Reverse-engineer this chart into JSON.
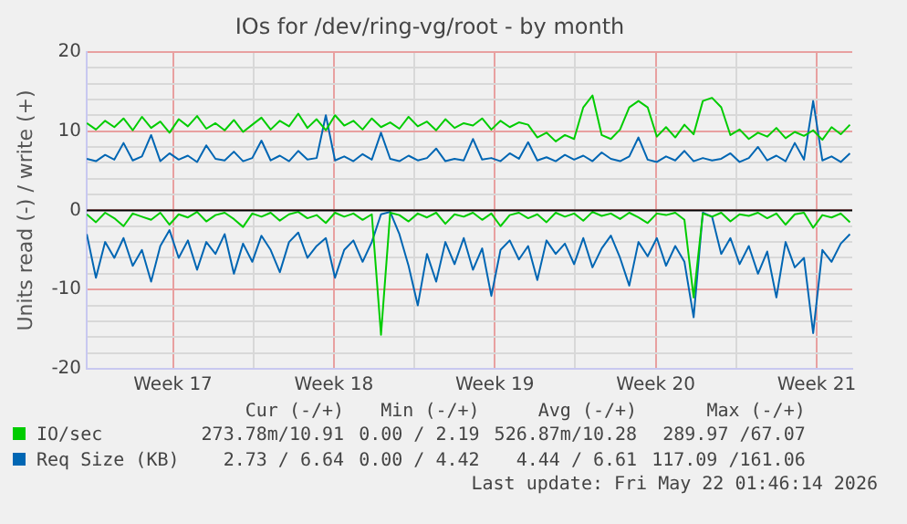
{
  "chart_data": {
    "type": "line",
    "title": "IOs for /dev/ring-vg/root - by month",
    "ylabel": "Units read (-) / write (+)",
    "x": [
      "2026-04-18T18:00",
      "2026-04-19T03:36",
      "2026-04-19T13:12",
      "2026-04-19T22:48",
      "2026-04-20T08:24",
      "2026-04-20T18:00",
      "2026-04-21T03:36",
      "2026-04-21T13:12",
      "2026-04-21T22:48",
      "2026-04-22T08:24",
      "2026-04-22T18:00",
      "2026-04-23T03:36",
      "2026-04-23T13:12",
      "2026-04-23T22:48",
      "2026-04-24T08:24",
      "2026-04-24T18:00",
      "2026-04-25T03:36",
      "2026-04-25T13:12",
      "2026-04-25T22:48",
      "2026-04-26T08:24",
      "2026-04-26T18:00",
      "2026-04-27T03:36",
      "2026-04-27T13:12",
      "2026-04-27T22:48",
      "2026-04-28T08:24",
      "2026-04-28T18:00",
      "2026-04-29T03:36",
      "2026-04-29T13:12",
      "2026-04-29T22:48",
      "2026-04-30T08:24",
      "2026-04-30T18:00",
      "2026-05-01T03:36",
      "2026-05-01T13:12",
      "2026-05-01T22:48",
      "2026-05-02T08:24",
      "2026-05-02T18:00",
      "2026-05-03T03:36",
      "2026-05-03T13:12",
      "2026-05-03T22:48",
      "2026-05-04T08:24",
      "2026-05-04T18:00",
      "2026-05-05T03:36",
      "2026-05-05T13:12",
      "2026-05-05T22:48",
      "2026-05-06T08:24",
      "2026-05-06T18:00",
      "2026-05-07T03:36",
      "2026-05-07T13:12",
      "2026-05-07T22:48",
      "2026-05-08T08:24",
      "2026-05-08T18:00",
      "2026-05-09T03:36",
      "2026-05-09T13:12",
      "2026-05-09T22:48",
      "2026-05-10T08:24",
      "2026-05-10T18:00",
      "2026-05-11T03:36",
      "2026-05-11T13:12",
      "2026-05-11T22:48",
      "2026-05-12T08:24",
      "2026-05-12T18:00",
      "2026-05-13T03:36",
      "2026-05-13T13:12",
      "2026-05-13T22:48",
      "2026-05-14T08:24",
      "2026-05-14T18:00",
      "2026-05-15T03:36",
      "2026-05-15T13:12",
      "2026-05-15T22:48",
      "2026-05-16T08:24",
      "2026-05-16T18:00",
      "2026-05-17T03:36",
      "2026-05-17T13:12",
      "2026-05-17T22:48",
      "2026-05-18T08:24",
      "2026-05-18T18:00",
      "2026-05-19T03:36",
      "2026-05-19T13:12",
      "2026-05-19T22:48",
      "2026-05-20T08:24",
      "2026-05-20T18:00",
      "2026-05-21T03:36",
      "2026-05-21T13:12",
      "2026-05-21T22:48"
    ],
    "series": [
      {
        "name": "IO/sec",
        "color": "#00cc00",
        "values": [
          11,
          10.2,
          11.3,
          10.5,
          11.6,
          10.1,
          11.8,
          10.4,
          11.2,
          9.8,
          11.5,
          10.6,
          11.9,
          10.3,
          11,
          10.1,
          11.4,
          9.9,
          10.8,
          11.7,
          10.2,
          11.3,
          10.6,
          12.2,
          10.4,
          11.5,
          10.1,
          12,
          10.7,
          11.3,
          10.2,
          11.6,
          10.5,
          11.1,
          10.3,
          11.8,
          10.6,
          11.2,
          10.1,
          11.5,
          10.4,
          11,
          10.7,
          11.6,
          10.2,
          11.3,
          10.5,
          11.1,
          10.8,
          9.2,
          9.8,
          8.7,
          9.5,
          9,
          13,
          14.5,
          9.5,
          9,
          10.2,
          13,
          13.8,
          13,
          9.3,
          10.5,
          9.2,
          10.8,
          9.6,
          13.8,
          14.2,
          13,
          9.5,
          10.2,
          9,
          9.8,
          9.3,
          10.4,
          9.1,
          9.9,
          9.4,
          10.1,
          8.9,
          10.5,
          9.6,
          10.8
        ]
      },
      {
        "color": "#00cc00",
        "values": [
          -0.5,
          -1.5,
          -0.3,
          -1,
          -2,
          -0.4,
          -0.8,
          -1.2,
          -0.3,
          -1.8,
          -0.5,
          -0.9,
          -0.2,
          -1.4,
          -0.6,
          -0.3,
          -1.1,
          -2.1,
          -0.4,
          -0.8,
          -0.3,
          -1.3,
          -0.5,
          -0.2,
          -1,
          -0.6,
          -1.6,
          -0.3,
          -0.8,
          -0.4,
          -1.2,
          -0.5,
          -15.7,
          -0.3,
          -0.6,
          -1.4,
          -0.4,
          -0.9,
          -0.3,
          -1.7,
          -0.5,
          -0.8,
          -0.3,
          -1.2,
          -0.4,
          -2,
          -0.6,
          -0.3,
          -1,
          -0.5,
          -1.5,
          -0.3,
          -0.8,
          -0.4,
          -1.3,
          -0.2,
          -0.7,
          -0.4,
          -1.1,
          -0.3,
          -0.9,
          -1.6,
          -0.4,
          -0.6,
          -0.3,
          -1.2,
          -11,
          -0.4,
          -0.8,
          -0.3,
          -1.4,
          -0.5,
          -0.7,
          -0.3,
          -1,
          -0.4,
          -1.8,
          -0.5,
          -0.3,
          -2.2,
          -0.6,
          -0.9,
          -0.4,
          -1.5
        ]
      },
      {
        "name": "Req Size (KB)",
        "color": "#0066b3",
        "values": [
          6.5,
          6.2,
          7,
          6.4,
          8.5,
          6.3,
          6.8,
          9.5,
          6.2,
          7.2,
          6.4,
          6.9,
          6.1,
          8.2,
          6.5,
          6.3,
          7.4,
          6.2,
          6.6,
          8.8,
          6.3,
          6.9,
          6.2,
          7.5,
          6.4,
          6.6,
          12,
          6.3,
          6.8,
          6.2,
          7.1,
          6.4,
          9.8,
          6.5,
          6.2,
          6.9,
          6.3,
          6.6,
          7.8,
          6.2,
          6.5,
          6.3,
          9,
          6.4,
          6.6,
          6.2,
          7.2,
          6.5,
          8.6,
          6.3,
          6.7,
          6.2,
          7,
          6.4,
          6.9,
          6.2,
          7.3,
          6.5,
          6.2,
          6.8,
          9.2,
          6.4,
          6.1,
          6.8,
          6.3,
          7.5,
          6.2,
          6.6,
          6.3,
          6.5,
          7.2,
          6.1,
          6.6,
          8,
          6.3,
          6.9,
          6.2,
          8.5,
          6.4,
          13.8,
          6.3,
          6.8,
          6.1,
          7.2
        ]
      },
      {
        "color": "#0066b3",
        "values": [
          -3,
          -8.5,
          -4,
          -6,
          -3.5,
          -7,
          -5,
          -9,
          -4.5,
          -2.5,
          -6,
          -3.8,
          -7.5,
          -4,
          -5.5,
          -3,
          -8,
          -4.2,
          -6.5,
          -3.2,
          -5,
          -7.8,
          -4,
          -2.8,
          -6,
          -4.5,
          -3.5,
          -8.5,
          -5,
          -3.8,
          -6.5,
          -4,
          -0.5,
          -0.2,
          -3,
          -7,
          -12,
          -5.5,
          -9,
          -4,
          -6.8,
          -3.5,
          -7.5,
          -4.8,
          -10.8,
          -5,
          -3.8,
          -6.2,
          -4.5,
          -8.8,
          -3.8,
          -5.5,
          -4.2,
          -6.8,
          -3.5,
          -7.2,
          -4.8,
          -3.2,
          -6,
          -9.5,
          -4,
          -5.8,
          -3.5,
          -7,
          -4.5,
          -6.5,
          -13.5,
          -0.3,
          -0.8,
          -5.5,
          -3.5,
          -6.8,
          -4.5,
          -8,
          -5.2,
          -11,
          -4,
          -7.2,
          -6,
          -15.5,
          -5,
          -6.5,
          -4.2,
          -3
        ]
      }
    ],
    "xlim": [
      "2026-04-18T18:00",
      "2026-05-22T01:12"
    ],
    "xticks": [
      {
        "value": "2026-04-22T12:00",
        "label": "Week 17"
      },
      {
        "value": "2026-04-26",
        "label": null
      },
      {
        "value": "2026-04-29T12:00",
        "label": "Week 18"
      },
      {
        "value": "2026-05-03",
        "label": null
      },
      {
        "value": "2026-05-06T12:00",
        "label": "Week 19"
      },
      {
        "value": "2026-05-10",
        "label": null
      },
      {
        "value": "2026-05-13T12:00",
        "label": "Week 20"
      },
      {
        "value": "2026-05-17",
        "label": null
      },
      {
        "value": "2026-05-20T12:00",
        "label": "Week 21"
      }
    ],
    "ylim": [
      -20,
      20
    ],
    "yticks": [
      -20,
      {
        "value": -18,
        "label": null
      },
      {
        "value": -16,
        "label": null
      },
      {
        "value": -14,
        "label": null
      },
      {
        "value": -12,
        "label": null
      },
      -10,
      {
        "value": -8,
        "label": null
      },
      {
        "value": -6,
        "label": null
      },
      {
        "value": -4,
        "label": null
      },
      {
        "value": -2,
        "label": null
      },
      0,
      {
        "value": 2,
        "label": null
      },
      {
        "value": 4,
        "label": null
      },
      {
        "value": 6,
        "label": null
      },
      {
        "value": 8,
        "label": null
      },
      10,
      {
        "value": 12,
        "label": null
      },
      {
        "value": 14,
        "label": null
      },
      {
        "value": 16,
        "label": null
      },
      {
        "value": 18,
        "label": null
      },
      20
    ],
    "grid": true,
    "legend": "bottom",
    "marker": "none",
    "line_style": "solid",
    "ref_lines": [
      {
        "axis": "y",
        "value": 0,
        "color": "#000000"
      }
    ],
    "annotations": [
      "Cur (-/+)",
      "Min (-/+)",
      "Avg (-/+)",
      "Max (-/+)",
      "273.78m/10.91",
      "0.00 / 2.19",
      "526.87m/10.28",
      "289.97 /67.07",
      "2.73 / 6.64",
      "0.00 / 4.42",
      "4.44 / 6.61",
      "117.09 /161.06",
      "Last update: Fri May 22 01:46:14 2026"
    ]
  }
}
